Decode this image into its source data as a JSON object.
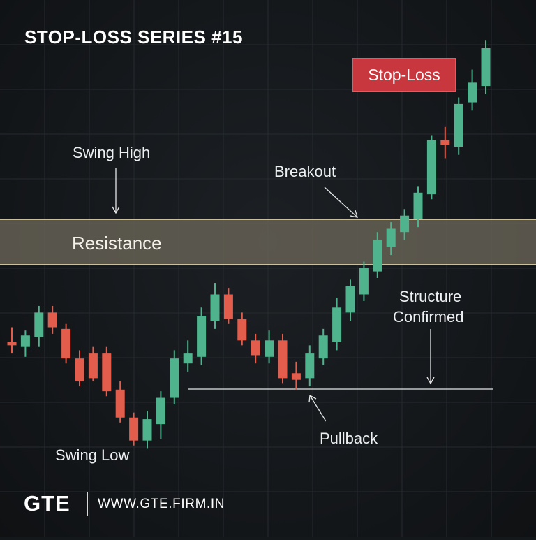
{
  "title": "STOP-LOSS SERIES #15",
  "annotations": {
    "swing_high": "Swing High",
    "breakout": "Breakout",
    "resistance": "Resistance",
    "stop_loss": "Stop-Loss",
    "structure_line1": "Structure",
    "structure_line2": "Confirmed",
    "pullback": "Pullback",
    "swing_low": "Swing Low"
  },
  "footer": {
    "brand": "GTE",
    "url": "WWW.GTE.FIRM.IN"
  },
  "colors": {
    "bullish": "#4fb38d",
    "bearish": "#e35d4c",
    "background": "#15181b",
    "resistance_zone": "#6c665a",
    "stop_loss_badge": "#c8373d"
  },
  "chart_data": {
    "type": "candlestick",
    "price_axis_visible": false,
    "grid": true,
    "candles": [
      {
        "o": 6.1,
        "h": 7.0,
        "l": 5.4,
        "c": 5.9
      },
      {
        "o": 5.8,
        "h": 6.8,
        "l": 5.2,
        "c": 6.5
      },
      {
        "o": 6.4,
        "h": 8.3,
        "l": 5.8,
        "c": 7.9
      },
      {
        "o": 7.9,
        "h": 8.3,
        "l": 6.6,
        "c": 7.0
      },
      {
        "o": 6.9,
        "h": 7.2,
        "l": 4.8,
        "c": 5.1
      },
      {
        "o": 5.1,
        "h": 5.6,
        "l": 3.4,
        "c": 3.7
      },
      {
        "o": 5.4,
        "h": 5.8,
        "l": 3.7,
        "c": 3.9
      },
      {
        "o": 5.4,
        "h": 5.8,
        "l": 2.8,
        "c": 3.1
      },
      {
        "o": 3.2,
        "h": 3.7,
        "l": 1.2,
        "c": 1.5
      },
      {
        "o": 1.5,
        "h": 1.8,
        "l": -0.2,
        "c": 0.1
      },
      {
        "o": 0.1,
        "h": 1.9,
        "l": -0.4,
        "c": 1.4
      },
      {
        "o": 1.1,
        "h": 3.1,
        "l": 0.2,
        "c": 2.7
      },
      {
        "o": 2.7,
        "h": 5.6,
        "l": 2.3,
        "c": 5.1
      },
      {
        "o": 4.8,
        "h": 6.2,
        "l": 4.3,
        "c": 5.4
      },
      {
        "o": 5.2,
        "h": 8.2,
        "l": 4.7,
        "c": 7.7
      },
      {
        "o": 7.4,
        "h": 9.7,
        "l": 6.9,
        "c": 9.0
      },
      {
        "o": 9.0,
        "h": 9.4,
        "l": 7.2,
        "c": 7.5
      },
      {
        "o": 7.5,
        "h": 7.9,
        "l": 5.9,
        "c": 6.2
      },
      {
        "o": 6.2,
        "h": 6.6,
        "l": 4.8,
        "c": 5.3
      },
      {
        "o": 5.2,
        "h": 6.8,
        "l": 4.8,
        "c": 6.2
      },
      {
        "o": 6.2,
        "h": 6.6,
        "l": 3.6,
        "c": 3.9
      },
      {
        "o": 4.2,
        "h": 4.9,
        "l": 3.2,
        "c": 3.8
      },
      {
        "o": 3.9,
        "h": 5.9,
        "l": 3.4,
        "c": 5.4
      },
      {
        "o": 5.1,
        "h": 6.9,
        "l": 4.7,
        "c": 6.5
      },
      {
        "o": 6.1,
        "h": 8.8,
        "l": 5.6,
        "c": 8.2
      },
      {
        "o": 7.9,
        "h": 9.9,
        "l": 7.4,
        "c": 9.5
      },
      {
        "o": 9.0,
        "h": 11.0,
        "l": 8.6,
        "c": 10.6
      },
      {
        "o": 10.4,
        "h": 12.8,
        "l": 10.0,
        "c": 12.3
      },
      {
        "o": 11.9,
        "h": 13.4,
        "l": 11.4,
        "c": 13.0
      },
      {
        "o": 12.8,
        "h": 14.2,
        "l": 12.3,
        "c": 13.8
      },
      {
        "o": 13.6,
        "h": 15.6,
        "l": 13.1,
        "c": 15.2
      },
      {
        "o": 15.1,
        "h": 18.7,
        "l": 14.8,
        "c": 18.4
      },
      {
        "o": 18.4,
        "h": 19.2,
        "l": 17.3,
        "c": 18.1
      },
      {
        "o": 18.0,
        "h": 21.0,
        "l": 17.5,
        "c": 20.6
      },
      {
        "o": 20.7,
        "h": 22.7,
        "l": 20.2,
        "c": 21.9
      },
      {
        "o": 21.7,
        "h": 24.5,
        "l": 21.2,
        "c": 24.0
      }
    ],
    "resistance_zone": {
      "low": 9.2,
      "high": 12.7
    },
    "structure_level": 4.2
  }
}
